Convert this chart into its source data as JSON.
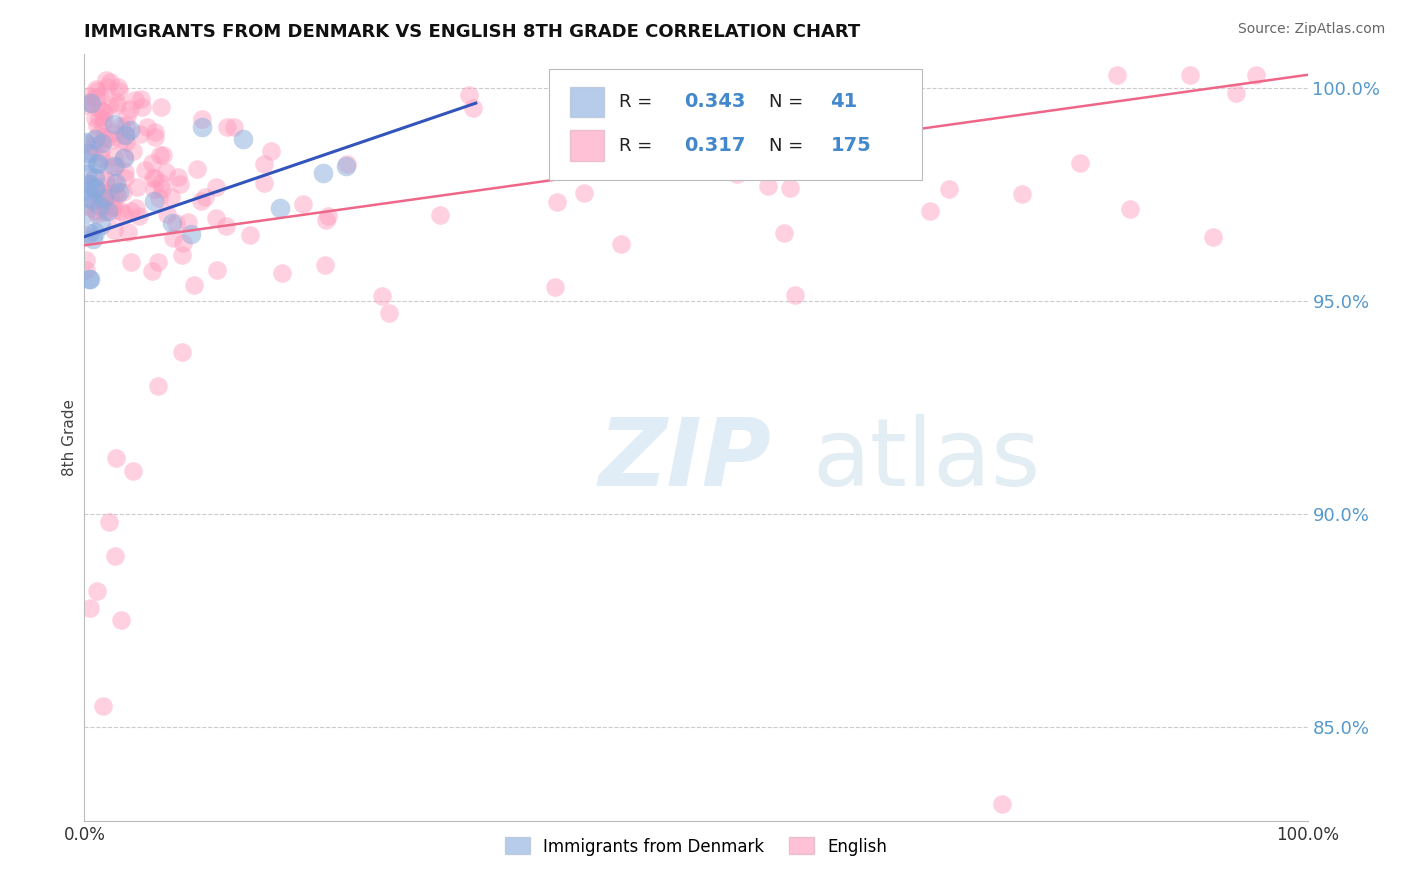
{
  "title": "IMMIGRANTS FROM DENMARK VS ENGLISH 8TH GRADE CORRELATION CHART",
  "source": "Source: ZipAtlas.com",
  "ylabel": "8th Grade",
  "xlim": [
    0.0,
    1.0
  ],
  "ylim": [
    0.828,
    1.008
  ],
  "yticks": [
    0.85,
    0.9,
    0.95,
    1.0
  ],
  "ytick_labels": [
    "85.0%",
    "90.0%",
    "95.0%",
    "100.0%"
  ],
  "blue_R": 0.343,
  "blue_N": 41,
  "pink_R": 0.317,
  "pink_N": 175,
  "blue_color": "#88aadd",
  "pink_color": "#ff99bb",
  "blue_line_color": "#3355bb",
  "pink_line_color": "#ee6688",
  "grid_color": "#cccccc",
  "background_color": "#ffffff",
  "legend_label_blue": "Immigrants from Denmark",
  "legend_label_pink": "English",
  "blue_seed": 12,
  "pink_seed": 7
}
